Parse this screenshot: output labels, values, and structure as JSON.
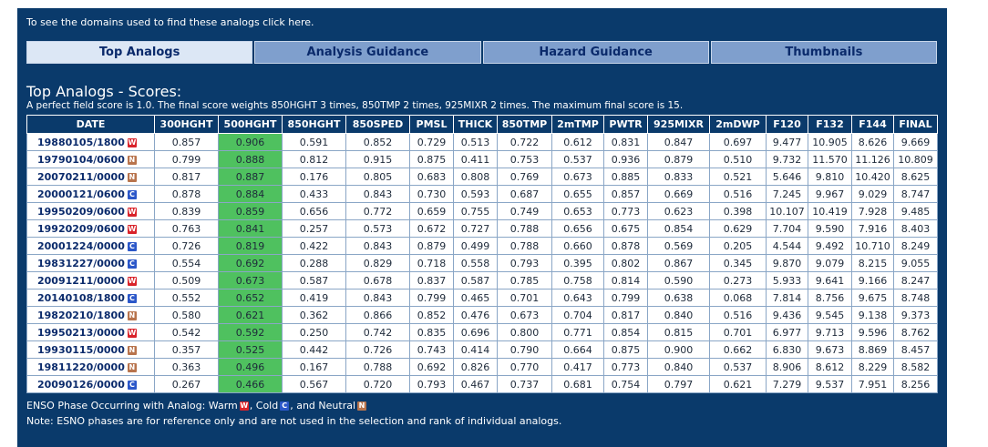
{
  "domains_link": "To see the domains used to find these analogs click here.",
  "tabs": [
    {
      "label": "Top Analogs",
      "active": true
    },
    {
      "label": "Analysis Guidance",
      "active": false
    },
    {
      "label": "Hazard Guidance",
      "active": false
    },
    {
      "label": "Thumbnails",
      "active": false
    }
  ],
  "section": {
    "title": "Top Analogs - Scores:",
    "description": "A perfect field score is 1.0. The final score weights 850HGHT 3 times, 850TMP 2 times, 925MIXR 2 times. The maximum final score is 15."
  },
  "colors": {
    "panel_bg": "#0a3a6b",
    "highlight_column": "#4fc15f",
    "warm": "#d9232a",
    "cold": "#2b57c9",
    "neutral": "#b8744d"
  },
  "table": {
    "columns": [
      "DATE",
      "300HGHT",
      "500HGHT",
      "850HGHT",
      "850SPED",
      "PMSL",
      "THICK",
      "850TMP",
      "2mTMP",
      "PWTR",
      "925MIXR",
      "2mDWP",
      "F120",
      "F132",
      "F144",
      "FINAL"
    ],
    "highlight_column": "500HGHT",
    "rows": [
      {
        "date": "19880105/1800",
        "enso": "W",
        "values": [
          "0.857",
          "0.906",
          "0.591",
          "0.852",
          "0.729",
          "0.513",
          "0.722",
          "0.612",
          "0.831",
          "0.847",
          "0.697",
          "9.477",
          "10.905",
          "8.626",
          "9.669"
        ]
      },
      {
        "date": "19790104/0600",
        "enso": "N",
        "values": [
          "0.799",
          "0.888",
          "0.812",
          "0.915",
          "0.875",
          "0.411",
          "0.753",
          "0.537",
          "0.936",
          "0.879",
          "0.510",
          "9.732",
          "11.570",
          "11.126",
          "10.809"
        ]
      },
      {
        "date": "20070211/0000",
        "enso": "N",
        "values": [
          "0.817",
          "0.887",
          "0.176",
          "0.805",
          "0.683",
          "0.808",
          "0.769",
          "0.673",
          "0.885",
          "0.833",
          "0.521",
          "5.646",
          "9.810",
          "10.420",
          "8.625"
        ]
      },
      {
        "date": "20000121/0600",
        "enso": "C",
        "values": [
          "0.878",
          "0.884",
          "0.433",
          "0.843",
          "0.730",
          "0.593",
          "0.687",
          "0.655",
          "0.857",
          "0.669",
          "0.516",
          "7.245",
          "9.967",
          "9.029",
          "8.747"
        ]
      },
      {
        "date": "19950209/0600",
        "enso": "W",
        "values": [
          "0.839",
          "0.859",
          "0.656",
          "0.772",
          "0.659",
          "0.755",
          "0.749",
          "0.653",
          "0.773",
          "0.623",
          "0.398",
          "10.107",
          "10.419",
          "7.928",
          "9.485"
        ]
      },
      {
        "date": "19920209/0600",
        "enso": "W",
        "values": [
          "0.763",
          "0.841",
          "0.257",
          "0.573",
          "0.672",
          "0.727",
          "0.788",
          "0.656",
          "0.675",
          "0.854",
          "0.629",
          "7.704",
          "9.590",
          "7.916",
          "8.403"
        ]
      },
      {
        "date": "20001224/0000",
        "enso": "C",
        "values": [
          "0.726",
          "0.819",
          "0.422",
          "0.843",
          "0.879",
          "0.499",
          "0.788",
          "0.660",
          "0.878",
          "0.569",
          "0.205",
          "4.544",
          "9.492",
          "10.710",
          "8.249"
        ]
      },
      {
        "date": "19831227/0000",
        "enso": "C",
        "values": [
          "0.554",
          "0.692",
          "0.288",
          "0.829",
          "0.718",
          "0.558",
          "0.793",
          "0.395",
          "0.802",
          "0.867",
          "0.345",
          "9.870",
          "9.079",
          "8.215",
          "9.055"
        ]
      },
      {
        "date": "20091211/0000",
        "enso": "W",
        "values": [
          "0.509",
          "0.673",
          "0.587",
          "0.678",
          "0.837",
          "0.587",
          "0.785",
          "0.758",
          "0.814",
          "0.590",
          "0.273",
          "5.933",
          "9.641",
          "9.166",
          "8.247"
        ]
      },
      {
        "date": "20140108/1800",
        "enso": "C",
        "values": [
          "0.552",
          "0.652",
          "0.419",
          "0.843",
          "0.799",
          "0.465",
          "0.701",
          "0.643",
          "0.799",
          "0.638",
          "0.068",
          "7.814",
          "8.756",
          "9.675",
          "8.748"
        ]
      },
      {
        "date": "19820210/1800",
        "enso": "N",
        "values": [
          "0.580",
          "0.621",
          "0.362",
          "0.866",
          "0.852",
          "0.476",
          "0.673",
          "0.704",
          "0.817",
          "0.840",
          "0.516",
          "9.436",
          "9.545",
          "9.138",
          "9.373"
        ]
      },
      {
        "date": "19950213/0000",
        "enso": "W",
        "values": [
          "0.542",
          "0.592",
          "0.250",
          "0.742",
          "0.835",
          "0.696",
          "0.800",
          "0.771",
          "0.854",
          "0.815",
          "0.701",
          "6.977",
          "9.713",
          "9.596",
          "8.762"
        ]
      },
      {
        "date": "19930115/0000",
        "enso": "N",
        "values": [
          "0.357",
          "0.525",
          "0.442",
          "0.726",
          "0.743",
          "0.414",
          "0.790",
          "0.664",
          "0.875",
          "0.900",
          "0.662",
          "6.830",
          "9.673",
          "8.869",
          "8.457"
        ]
      },
      {
        "date": "19811220/0000",
        "enso": "N",
        "values": [
          "0.363",
          "0.496",
          "0.167",
          "0.788",
          "0.692",
          "0.826",
          "0.770",
          "0.417",
          "0.773",
          "0.840",
          "0.537",
          "8.906",
          "8.612",
          "8.229",
          "8.582"
        ]
      },
      {
        "date": "20090126/0000",
        "enso": "C",
        "values": [
          "0.267",
          "0.466",
          "0.567",
          "0.720",
          "0.793",
          "0.467",
          "0.737",
          "0.681",
          "0.754",
          "0.797",
          "0.621",
          "7.279",
          "9.537",
          "7.951",
          "8.256"
        ]
      }
    ]
  },
  "legend": {
    "prefix": "ENSO Phase Occurring with Analog:",
    "warm_label": "Warm",
    "warm_badge": "W",
    "cold_label": "Cold",
    "cold_badge": "C",
    "neutral_label": "and Neutral",
    "neutral_badge": "N",
    "note": "Note: ESNO phases are for reference only and are not used in the selection and rank of individual analogs."
  }
}
